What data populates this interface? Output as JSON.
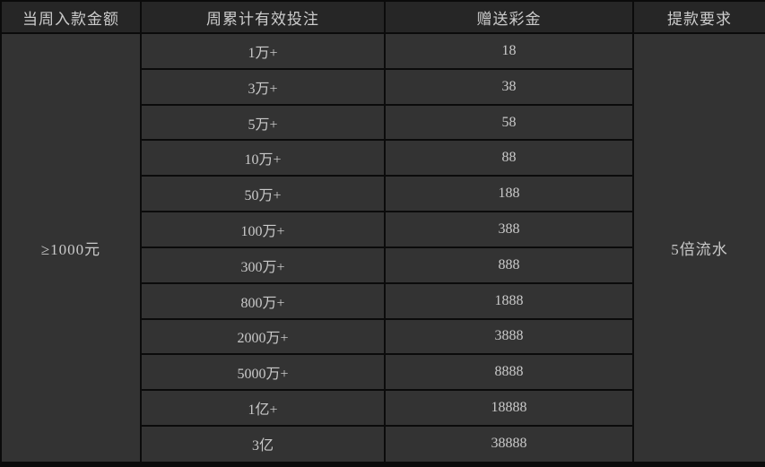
{
  "table": {
    "headers": [
      "当周入款金额",
      "周累计有效投注",
      "赠送彩金",
      "提款要求"
    ],
    "deposit_amount": "≥1000元",
    "withdrawal_requirement": "5倍流水",
    "rows": [
      {
        "bet": "1万+",
        "bonus": "18"
      },
      {
        "bet": "3万+",
        "bonus": "38"
      },
      {
        "bet": "5万+",
        "bonus": "58"
      },
      {
        "bet": "10万+",
        "bonus": "88"
      },
      {
        "bet": "50万+",
        "bonus": "188"
      },
      {
        "bet": "100万+",
        "bonus": "388"
      },
      {
        "bet": "300万+",
        "bonus": "888"
      },
      {
        "bet": "800万+",
        "bonus": "1888"
      },
      {
        "bet": "2000万+",
        "bonus": "3888"
      },
      {
        "bet": "5000万+",
        "bonus": "8888"
      },
      {
        "bet": "1亿+",
        "bonus": "18888"
      },
      {
        "bet": "3亿",
        "bonus": "38888"
      }
    ],
    "colors": {
      "header_bg": "#262626",
      "cell_bg": "#333333",
      "border": "#0b0b0b",
      "text": "#cccccc"
    }
  }
}
